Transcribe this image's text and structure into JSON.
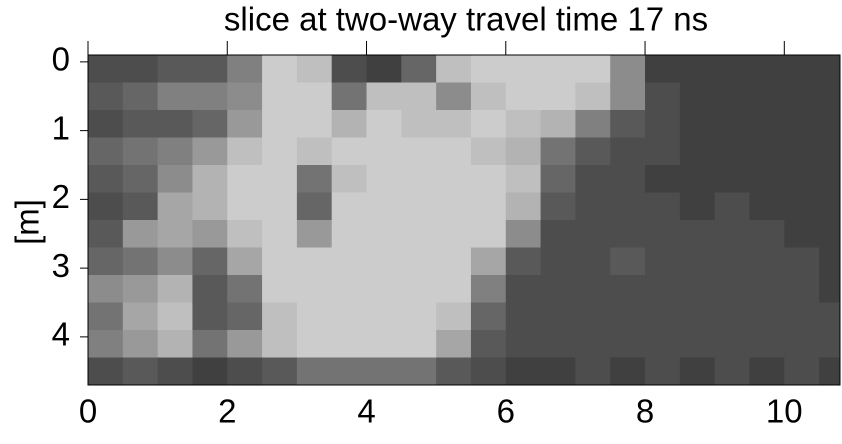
{
  "chart_data": {
    "type": "heatmap",
    "title": "slice at two-way travel time 17 ns",
    "ylabel": "[m]",
    "x": [
      0.25,
      0.75,
      1.25,
      1.75,
      2.25,
      2.75,
      3.25,
      3.75,
      4.25,
      4.75,
      5.25,
      5.75,
      6.25,
      6.75,
      7.25,
      7.75,
      8.25,
      8.75,
      9.25,
      9.75,
      10.25,
      10.75
    ],
    "y": [
      0.1,
      0.5,
      0.9,
      1.3,
      1.7,
      2.1,
      2.5,
      2.9,
      3.3,
      3.7,
      4.1,
      4.5
    ],
    "z": [
      [
        0.3,
        0.3,
        0.35,
        0.35,
        0.5,
        0.8,
        0.75,
        0.3,
        0.25,
        0.4,
        0.75,
        0.8,
        0.8,
        0.8,
        0.8,
        0.55,
        0.25,
        0.25,
        0.25,
        0.25,
        0.25,
        0.25
      ],
      [
        0.35,
        0.4,
        0.5,
        0.5,
        0.55,
        0.8,
        0.8,
        0.45,
        0.75,
        0.75,
        0.55,
        0.75,
        0.8,
        0.8,
        0.75,
        0.55,
        0.3,
        0.25,
        0.25,
        0.25,
        0.25,
        0.25
      ],
      [
        0.3,
        0.35,
        0.35,
        0.4,
        0.6,
        0.8,
        0.8,
        0.7,
        0.8,
        0.75,
        0.75,
        0.8,
        0.75,
        0.7,
        0.5,
        0.35,
        0.3,
        0.25,
        0.25,
        0.25,
        0.25,
        0.25
      ],
      [
        0.4,
        0.45,
        0.5,
        0.6,
        0.75,
        0.8,
        0.75,
        0.8,
        0.8,
        0.8,
        0.8,
        0.75,
        0.7,
        0.45,
        0.35,
        0.3,
        0.3,
        0.25,
        0.25,
        0.25,
        0.25,
        0.25
      ],
      [
        0.35,
        0.4,
        0.55,
        0.7,
        0.8,
        0.8,
        0.45,
        0.75,
        0.8,
        0.8,
        0.8,
        0.8,
        0.75,
        0.4,
        0.3,
        0.3,
        0.25,
        0.25,
        0.25,
        0.25,
        0.25,
        0.25
      ],
      [
        0.3,
        0.35,
        0.65,
        0.7,
        0.8,
        0.8,
        0.4,
        0.8,
        0.8,
        0.8,
        0.8,
        0.8,
        0.7,
        0.35,
        0.3,
        0.3,
        0.3,
        0.25,
        0.3,
        0.25,
        0.25,
        0.25
      ],
      [
        0.35,
        0.6,
        0.65,
        0.6,
        0.75,
        0.8,
        0.6,
        0.8,
        0.8,
        0.8,
        0.8,
        0.8,
        0.55,
        0.3,
        0.3,
        0.3,
        0.3,
        0.3,
        0.3,
        0.3,
        0.25,
        0.25
      ],
      [
        0.4,
        0.45,
        0.55,
        0.4,
        0.65,
        0.8,
        0.8,
        0.8,
        0.8,
        0.8,
        0.8,
        0.65,
        0.35,
        0.3,
        0.3,
        0.35,
        0.3,
        0.3,
        0.3,
        0.3,
        0.3,
        0.25
      ],
      [
        0.55,
        0.6,
        0.7,
        0.35,
        0.45,
        0.8,
        0.8,
        0.8,
        0.8,
        0.8,
        0.8,
        0.5,
        0.3,
        0.3,
        0.3,
        0.3,
        0.3,
        0.3,
        0.3,
        0.3,
        0.3,
        0.25
      ],
      [
        0.45,
        0.65,
        0.75,
        0.35,
        0.4,
        0.75,
        0.8,
        0.8,
        0.8,
        0.8,
        0.75,
        0.4,
        0.3,
        0.3,
        0.3,
        0.3,
        0.3,
        0.3,
        0.3,
        0.3,
        0.3,
        0.3
      ],
      [
        0.5,
        0.6,
        0.7,
        0.45,
        0.6,
        0.75,
        0.8,
        0.8,
        0.8,
        0.8,
        0.65,
        0.35,
        0.3,
        0.3,
        0.3,
        0.3,
        0.3,
        0.3,
        0.3,
        0.3,
        0.3,
        0.3
      ],
      [
        0.3,
        0.35,
        0.3,
        0.25,
        0.3,
        0.35,
        0.45,
        0.45,
        0.45,
        0.45,
        0.35,
        0.3,
        0.25,
        0.25,
        0.3,
        0.25,
        0.3,
        0.25,
        0.3,
        0.25,
        0.3,
        0.25
      ]
    ],
    "xlim": [
      0,
      10.8
    ],
    "ylim": [
      -0.1,
      4.7
    ],
    "y_inverted": true,
    "xticks": [
      0,
      2,
      4,
      6,
      8,
      10
    ],
    "yticks": [
      0,
      1,
      2,
      3,
      4
    ]
  }
}
